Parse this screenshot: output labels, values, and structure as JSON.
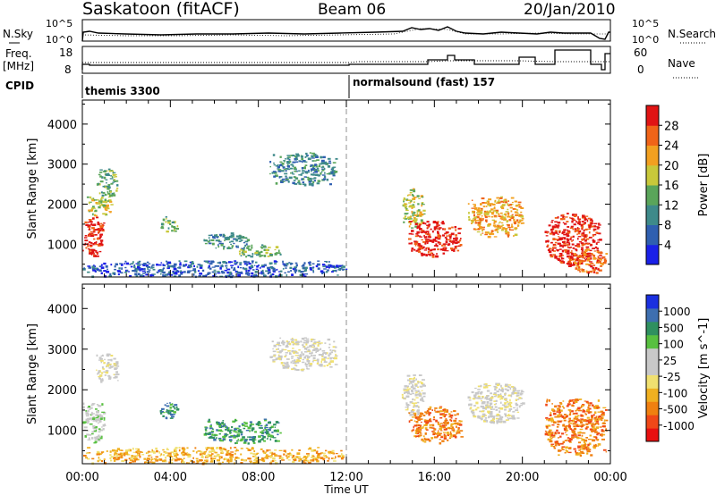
{
  "header": {
    "station": "Saskatoon (fitACF)",
    "beam": "Beam 06",
    "date": "20/Jan/2010"
  },
  "noise_panel": {
    "left_label": "N.Sky",
    "right_label": "N.Search",
    "left_ticks": [
      "10^5",
      "10^0"
    ],
    "right_ticks": [
      "10^5",
      "10^0"
    ]
  },
  "freq_panel": {
    "left_label_1": "Freq.",
    "left_label_2": "[MHz]",
    "right_label": "Nave",
    "left_ticks": [
      "18",
      "8"
    ],
    "right_ticks": [
      "60",
      "0"
    ]
  },
  "cpid": {
    "label": "CPID",
    "modes": [
      {
        "name": "themis 3300",
        "start_hour": 0
      },
      {
        "name": "normalsound (fast) 157",
        "start_hour": 12
      }
    ]
  },
  "chart_data": [
    {
      "type": "heatmap",
      "panel": "power",
      "ylabel": "Slant Range [km]",
      "ylim": [
        180,
        4600
      ],
      "yticks": [
        1000,
        2000,
        3000,
        4000
      ],
      "xlim": [
        0,
        24
      ],
      "colorbar_label": "Power [dB]",
      "colorbar_ticks": [
        4,
        8,
        12,
        16,
        20,
        24,
        28
      ],
      "colorbar_range": [
        0,
        32
      ],
      "colorscale": [
        "#1a20e8",
        "#2f5fb0",
        "#3e8a8a",
        "#5aa55a",
        "#c8c83a",
        "#f2a020",
        "#f06418",
        "#e01414"
      ],
      "regions": [
        {
          "t0": 0.0,
          "t1": 1.0,
          "r0": 700,
          "r1": 1700,
          "level": 7
        },
        {
          "t0": 0.2,
          "t1": 1.3,
          "r0": 1700,
          "r1": 2200,
          "level": 4
        },
        {
          "t0": 0.6,
          "t1": 1.6,
          "r0": 2200,
          "r1": 2900,
          "level": 3
        },
        {
          "t0": 3.5,
          "t1": 4.3,
          "r0": 1300,
          "r1": 1700,
          "level": 3
        },
        {
          "t0": 5.5,
          "t1": 7.5,
          "r0": 900,
          "r1": 1300,
          "level": 2
        },
        {
          "t0": 7.0,
          "t1": 9.0,
          "r0": 700,
          "r1": 1000,
          "level": 3
        },
        {
          "t0": 8.5,
          "t1": 11.5,
          "r0": 2500,
          "r1": 3300,
          "level": 2
        },
        {
          "t0": 0.0,
          "t1": 12.0,
          "r0": 200,
          "r1": 600,
          "level": 1
        },
        {
          "t0": 14.5,
          "t1": 15.5,
          "r0": 1400,
          "r1": 2400,
          "level": 4
        },
        {
          "t0": 14.8,
          "t1": 17.2,
          "r0": 700,
          "r1": 1600,
          "level": 7
        },
        {
          "t0": 17.5,
          "t1": 20.0,
          "r0": 1200,
          "r1": 2200,
          "level": 5
        },
        {
          "t0": 21.0,
          "t1": 23.5,
          "r0": 500,
          "r1": 1800,
          "level": 7
        },
        {
          "t0": 22.0,
          "t1": 23.8,
          "r0": 300,
          "r1": 900,
          "level": 6
        }
      ]
    },
    {
      "type": "heatmap",
      "panel": "velocity",
      "ylabel": "Slant Range [km]",
      "ylim": [
        180,
        4600
      ],
      "yticks": [
        1000,
        2000,
        3000,
        4000
      ],
      "xlim": [
        0,
        24
      ],
      "xticks": [
        "00:00",
        "04:00",
        "08:00",
        "12:00",
        "16:00",
        "20:00",
        "00:00"
      ],
      "xlabel": "Time UT",
      "colorbar_label": "Velocity [m s^-1]",
      "colorbar_ticks": [
        "1000",
        "500",
        "100",
        "25",
        "-25",
        "-100",
        "-500",
        "-1000"
      ],
      "colorscale": [
        "#e81010",
        "#f04818",
        "#f08010",
        "#f0b020",
        "#f0e070",
        "#c8c8c8",
        "#c8c8c8",
        "#58c040",
        "#2f9060",
        "#3e6fb0",
        "#1a30e0"
      ],
      "regions": [
        {
          "t0": 0.0,
          "t1": 1.0,
          "r0": 700,
          "r1": 1700,
          "level": 6
        },
        {
          "t0": 0.6,
          "t1": 1.6,
          "r0": 2200,
          "r1": 2900,
          "level": 5
        },
        {
          "t0": 3.5,
          "t1": 4.3,
          "r0": 1300,
          "r1": 1700,
          "level": 8
        },
        {
          "t0": 5.5,
          "t1": 9.0,
          "r0": 700,
          "r1": 1300,
          "level": 8
        },
        {
          "t0": 8.5,
          "t1": 11.5,
          "r0": 2500,
          "r1": 3300,
          "level": 5
        },
        {
          "t0": 0.0,
          "t1": 12.0,
          "r0": 200,
          "r1": 600,
          "level": 3
        },
        {
          "t0": 14.5,
          "t1": 15.5,
          "r0": 1400,
          "r1": 2400,
          "level": 5
        },
        {
          "t0": 14.8,
          "t1": 17.2,
          "r0": 700,
          "r1": 1600,
          "level": 2
        },
        {
          "t0": 17.5,
          "t1": 20.0,
          "r0": 1200,
          "r1": 2200,
          "level": 5
        },
        {
          "t0": 21.0,
          "t1": 23.8,
          "r0": 400,
          "r1": 1800,
          "level": 2
        }
      ]
    }
  ]
}
